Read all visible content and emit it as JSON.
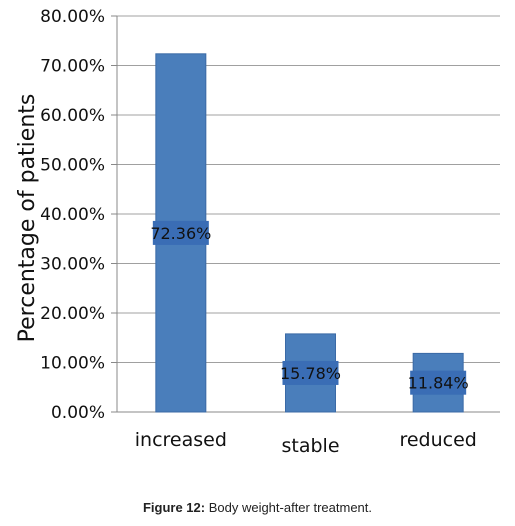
{
  "chart_data": {
    "type": "bar",
    "categories": [
      "increased",
      "stable",
      "reduced"
    ],
    "values": [
      72.36,
      15.78,
      11.84
    ],
    "data_labels": [
      "72.36%",
      "15.78%",
      "11.84%"
    ],
    "ylabel": "Percentage of patients",
    "xlabel": "",
    "ylim": [
      0,
      80
    ],
    "yticks": [
      0,
      10,
      20,
      30,
      40,
      50,
      60,
      70,
      80
    ],
    "ytick_labels": [
      "0.00%",
      "10.00%",
      "20.00%",
      "30.00%",
      "40.00%",
      "50.00%",
      "60.00%",
      "70.00%",
      "80.00%"
    ],
    "grid": true,
    "legend": "none",
    "bar_color": "#4a7ebb",
    "bar_edge_color": "#3b6aa6"
  },
  "caption": {
    "label": "Figure 12:",
    "text": " Body weight-after treatment."
  }
}
